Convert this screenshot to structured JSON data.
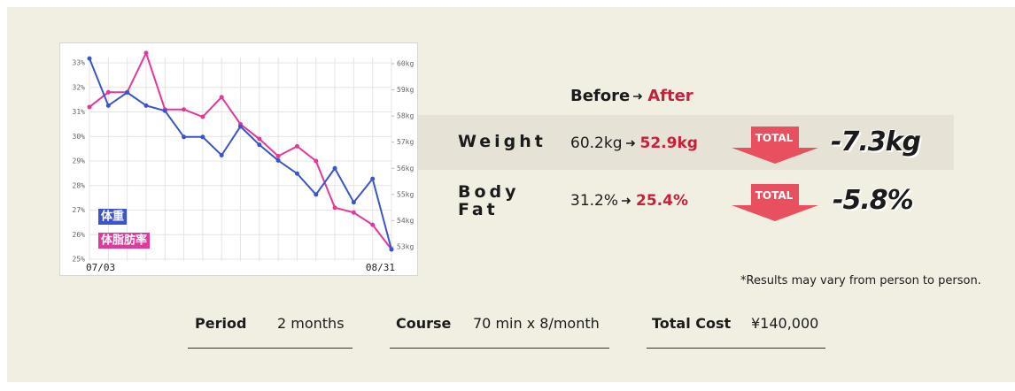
{
  "chart_data": {
    "type": "line",
    "categories": [
      "07/03",
      null,
      null,
      null,
      null,
      null,
      null,
      null,
      null,
      null,
      null,
      null,
      null,
      null,
      null,
      null,
      "08/31"
    ],
    "series": [
      {
        "name": "体重",
        "color": "#3a55cc",
        "axis": "y2",
        "values": [
          60.2,
          58.4,
          58.9,
          58.4,
          58.2,
          57.2,
          57.2,
          56.5,
          57.6,
          56.9,
          56.3,
          55.8,
          55.0,
          56.0,
          54.7,
          55.6,
          52.9
        ]
      },
      {
        "name": "体脂肪率",
        "color": "#e0399a",
        "values": [
          31.2,
          31.8,
          31.8,
          33.4,
          31.1,
          31.1,
          30.8,
          31.6,
          30.5,
          29.9,
          29.2,
          29.6,
          29.0,
          27.1,
          26.9,
          26.4,
          25.4
        ]
      }
    ],
    "ylim": [
      25,
      33
    ],
    "yticks": [
      {
        "value": 25,
        "label": "25%"
      },
      {
        "value": 26,
        "label": "26%"
      },
      {
        "value": 27,
        "label": "27%"
      },
      {
        "value": 28,
        "label": "28%"
      },
      {
        "value": 29,
        "label": "29%"
      },
      {
        "value": 30,
        "label": "30%"
      },
      {
        "value": 31,
        "label": "31%"
      },
      {
        "value": 32,
        "label": "32%"
      },
      {
        "value": 33,
        "label": "33%"
      }
    ],
    "y2lim": [
      53,
      60
    ],
    "y2ticks": [
      {
        "value": 53,
        "label": "53kg"
      },
      {
        "value": 54,
        "label": "54kg"
      },
      {
        "value": 55,
        "label": "55kg"
      },
      {
        "value": 56,
        "label": "56kg"
      },
      {
        "value": 57,
        "label": "57kg"
      },
      {
        "value": 58,
        "label": "58kg"
      },
      {
        "value": 59,
        "label": "59kg"
      },
      {
        "value": 60,
        "label": "60kg"
      }
    ],
    "grid": true
  },
  "results": {
    "header": {
      "before": "Before",
      "after": "After"
    },
    "rows": [
      {
        "label": "Weight",
        "before": "60.2kg",
        "after": "52.9kg",
        "badge": "TOTAL",
        "total": "-7.3kg"
      },
      {
        "label": "Body Fat",
        "before": "31.2%",
        "after": "25.4%",
        "badge": "TOTAL",
        "total": "-5.8%"
      }
    ]
  },
  "note": "*Results may vary from person to person.",
  "details": [
    {
      "label": "Period",
      "value": "2 months"
    },
    {
      "label": "Course",
      "value": "70 min x 8/month"
    },
    {
      "label": "Total Cost",
      "value": "¥140,000"
    }
  ]
}
